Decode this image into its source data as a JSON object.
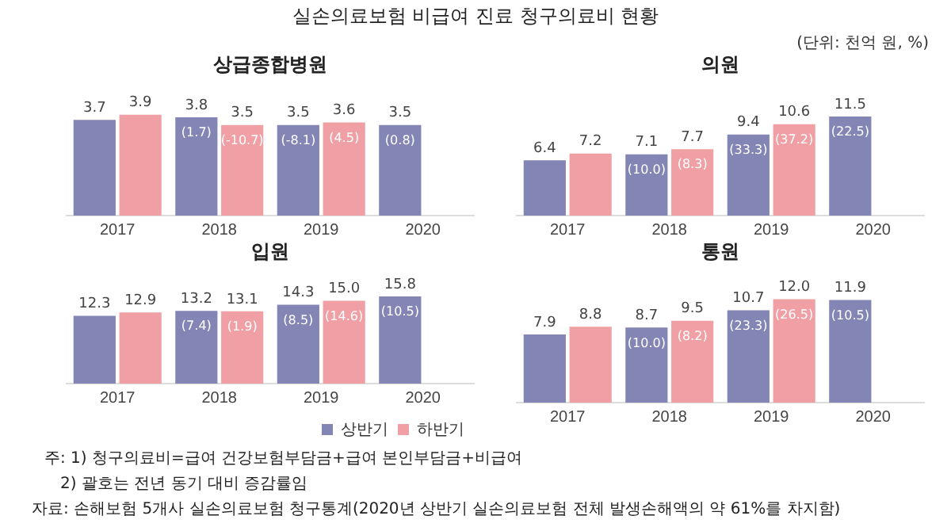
{
  "chart_data": [
    {
      "type": "other",
      "title": "실손의료보험 비급여 진료 청구의료비 현황",
      "subtitle": "(단위: 천억 원, %)",
      "annotations": [
        "주: 1) 청구의료비=급여 건강보험부담금+급여 본인부담금+비급여",
        "2) 괄호는 전년 동기 대비 증감률임",
        "자료: 손해보험 5개사 실손의료보험 청구통계(2020년 상반기 실손의료보험 전체 발생손해액의 약 61%를 차지함)"
      ]
    },
    {
      "type": "bar",
      "title": "상급종합병원",
      "categories": [
        "2017",
        "2018",
        "2019",
        "2020"
      ],
      "tick_labels": "x",
      "series": [
        {
          "color": "#8385b5",
          "values": [
            3.7,
            3.8,
            3.5,
            3.5
          ],
          "value_labels": [
            "3.7",
            "3.8",
            "3.5",
            "3.5"
          ]
        },
        {
          "color": "#f0a0a5",
          "values": [
            3.9,
            3.5,
            3.6,
            null
          ],
          "value_labels": [
            "3.9",
            "3.5",
            "3.6",
            null
          ]
        }
      ],
      "annotations": [
        {
          "text": "(1.7)",
          "x": "2018",
          "y": 3.8
        },
        {
          "text": "(-10.7)",
          "x": "2018",
          "y": 3.5
        },
        {
          "text": "(-8.1)",
          "x": "2019",
          "y": 3.5
        },
        {
          "text": "(4.5)",
          "x": "2019",
          "y": 3.6
        },
        {
          "text": "(0.8)",
          "x": "2020",
          "y": 3.5
        }
      ]
    },
    {
      "type": "bar",
      "title": "의원",
      "categories": [
        "2017",
        "2018",
        "2019",
        "2020"
      ],
      "tick_labels": "x",
      "series": [
        {
          "color": "#8385b5",
          "values": [
            6.4,
            7.1,
            9.4,
            11.5
          ],
          "value_labels": [
            "6.4",
            "7.1",
            "9.4",
            "11.5"
          ]
        },
        {
          "color": "#f0a0a5",
          "values": [
            7.2,
            7.7,
            10.6,
            null
          ],
          "value_labels": [
            "7.2",
            "7.7",
            "10.6",
            null
          ]
        }
      ],
      "annotations": [
        {
          "text": "(10.0)",
          "x": "2018",
          "y": 7.1
        },
        {
          "text": "(8.3)",
          "x": "2018",
          "y": 7.7
        },
        {
          "text": "(33.3)",
          "x": "2019",
          "y": 9.4
        },
        {
          "text": "(37.2)",
          "x": "2019",
          "y": 10.6
        },
        {
          "text": "(22.5)",
          "x": "2020",
          "y": 11.5
        }
      ]
    },
    {
      "type": "bar",
      "title": "입원",
      "categories": [
        "2017",
        "2018",
        "2019",
        "2020"
      ],
      "tick_labels": "x",
      "legend": "bottom right",
      "series": [
        {
          "name": "상반기",
          "color": "#8385b5",
          "values": [
            12.3,
            13.2,
            14.3,
            15.8
          ],
          "value_labels": [
            "12.3",
            "13.2",
            "14.3",
            "15.8"
          ]
        },
        {
          "name": "하반기",
          "color": "#f0a0a5",
          "values": [
            12.9,
            13.1,
            15.0,
            null
          ],
          "value_labels": [
            "12.9",
            "13.1",
            "15.0",
            null
          ]
        }
      ],
      "annotations": [
        {
          "text": "(7.4)",
          "x": "2018",
          "y": 13.2
        },
        {
          "text": "(1.9)",
          "x": "2018",
          "y": 13.1
        },
        {
          "text": "(8.5)",
          "x": "2019",
          "y": 14.3
        },
        {
          "text": "(14.6)",
          "x": "2019",
          "y": 15.0
        },
        {
          "text": "(10.5)",
          "x": "2020",
          "y": 15.8
        }
      ]
    },
    {
      "type": "bar",
      "title": "통원",
      "categories": [
        "2017",
        "2018",
        "2019",
        "2020"
      ],
      "tick_labels": "x",
      "series": [
        {
          "color": "#8385b5",
          "values": [
            7.9,
            8.7,
            10.7,
            11.9
          ],
          "value_labels": [
            "7.9",
            "8.7",
            "10.7",
            "11.9"
          ]
        },
        {
          "color": "#f0a0a5",
          "values": [
            8.8,
            9.5,
            12.0,
            null
          ],
          "value_labels": [
            "8.8",
            "9.5",
            "12.0",
            null
          ]
        }
      ],
      "annotations": [
        {
          "text": "(10.0)",
          "x": "2018",
          "y": 8.7
        },
        {
          "text": "(8.2)",
          "x": "2018",
          "y": 9.5
        },
        {
          "text": "(23.3)",
          "x": "2019",
          "y": 10.7
        },
        {
          "text": "(26.5)",
          "x": "2019",
          "y": 12.0
        },
        {
          "text": "(10.5)",
          "x": "2020",
          "y": 11.9
        }
      ]
    }
  ]
}
